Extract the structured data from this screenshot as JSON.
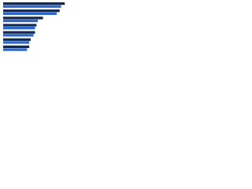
{
  "chart_data": {
    "type": "hbar",
    "categories": [
      null,
      null,
      null,
      null,
      null,
      null,
      null
    ],
    "series": [
      {
        "color": "#13294f",
        "values": [
          85,
          78,
          55,
          46,
          44,
          38,
          36
        ]
      },
      {
        "color": "#2d67c8",
        "values": [
          80,
          74,
          48,
          44,
          42,
          36,
          33
        ]
      }
    ],
    "xlim": [
      0,
      100
    ]
  }
}
